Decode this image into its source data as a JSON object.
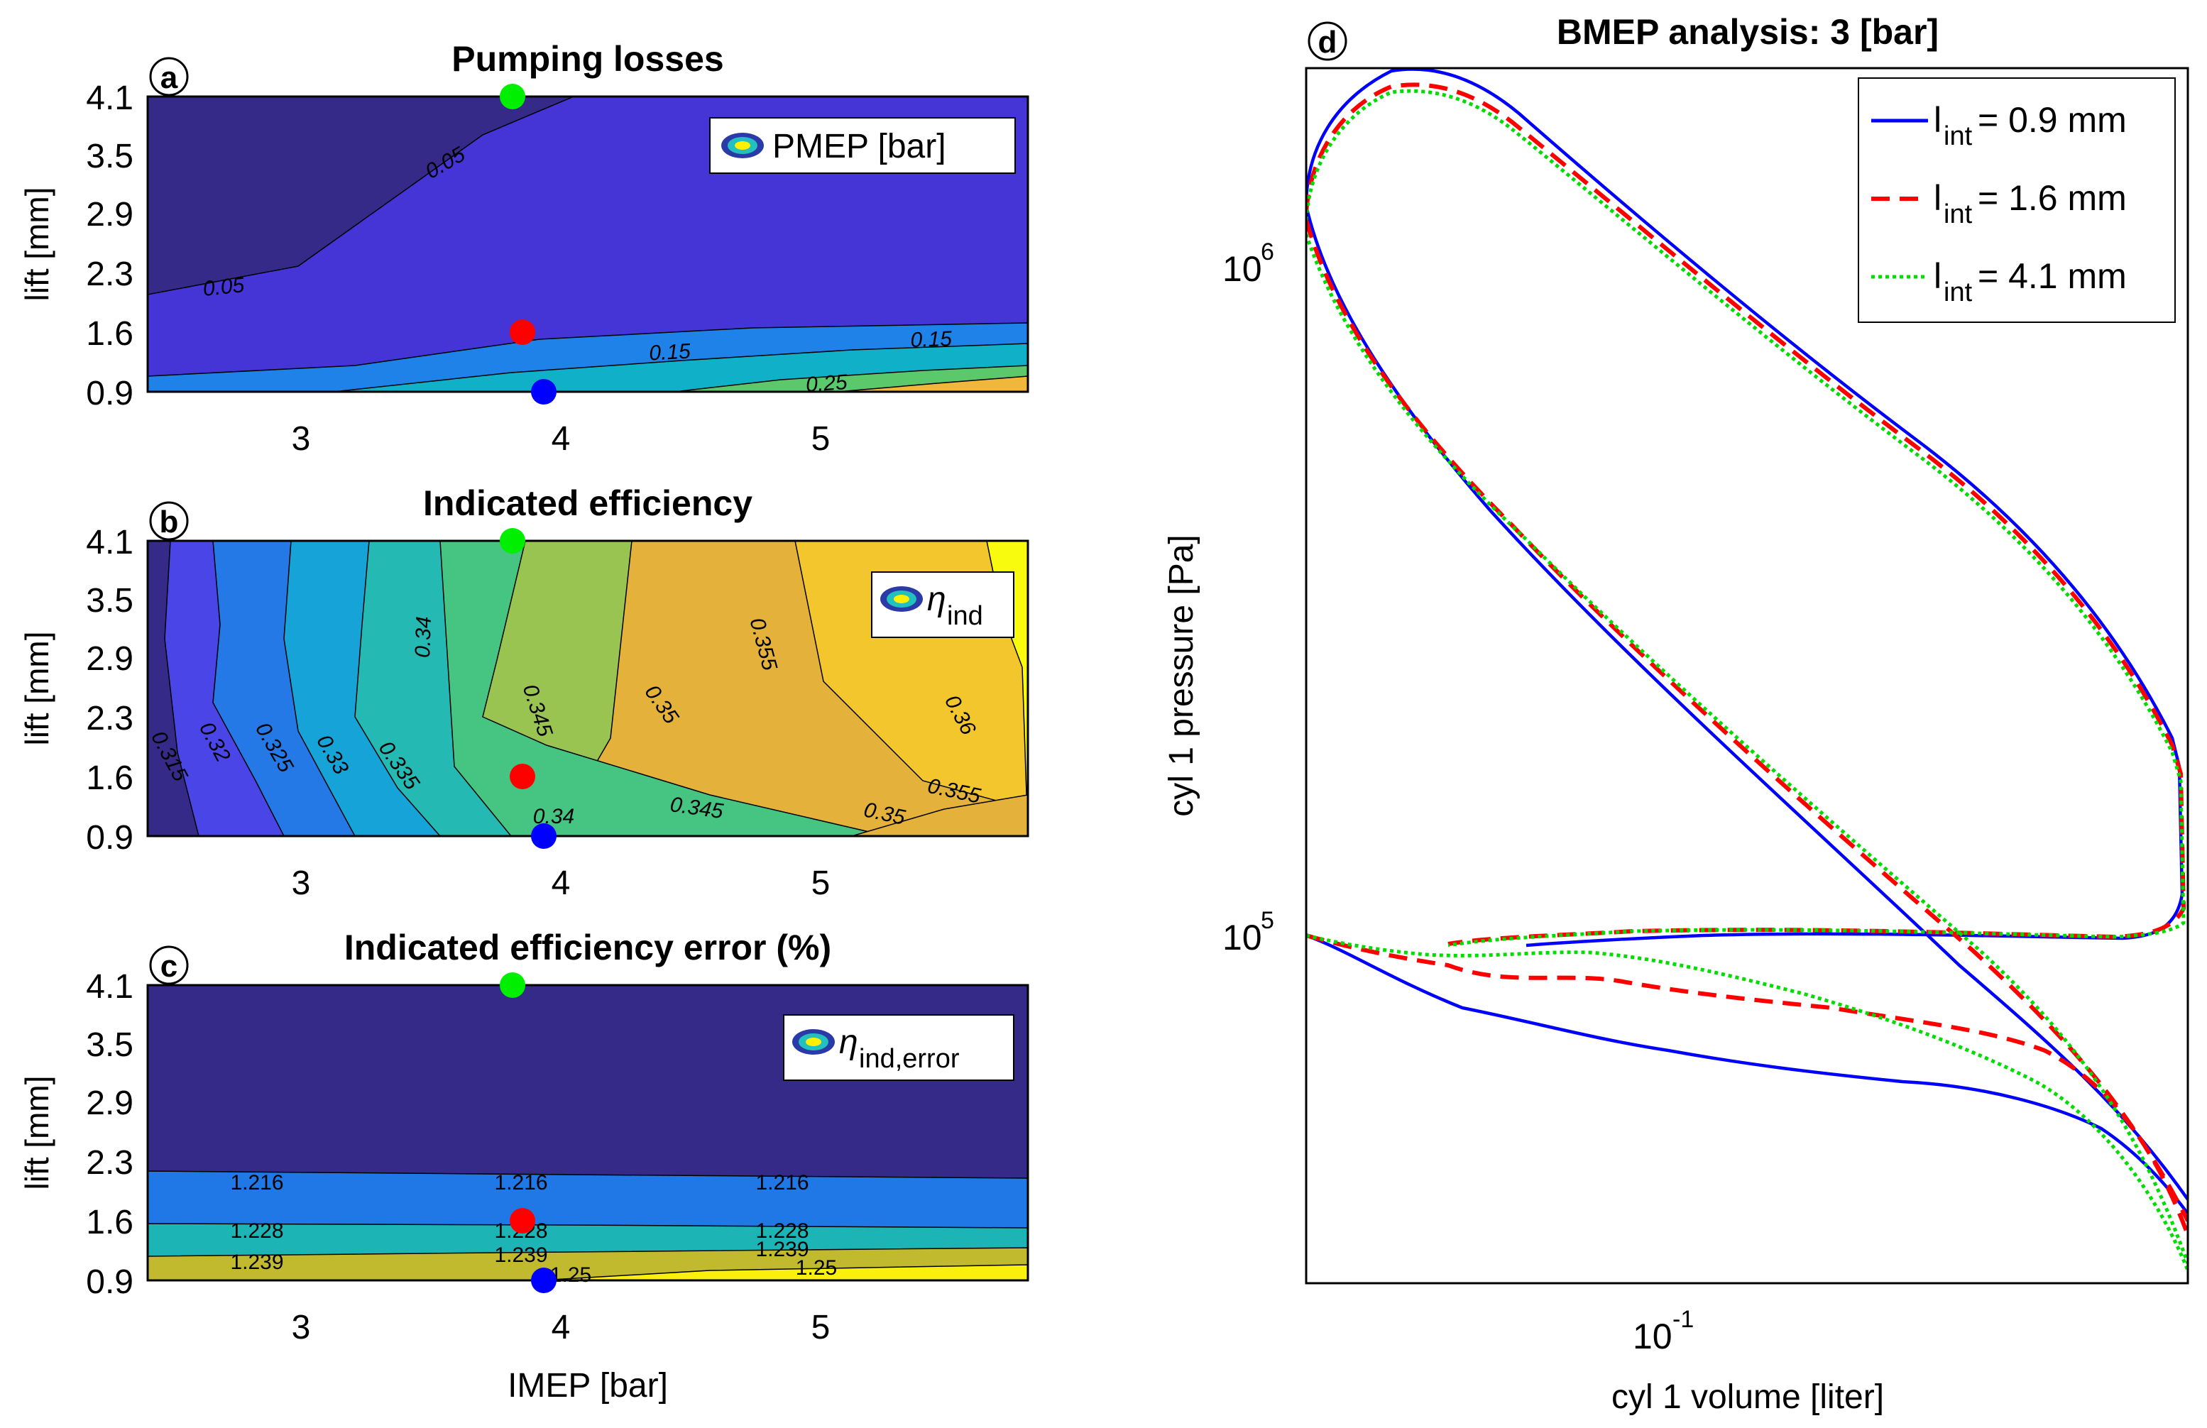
{
  "chart_data": [
    {
      "id": "a",
      "type": "contour",
      "panel_label": "a",
      "title": "Pumping losses",
      "xlabel": "",
      "ylabel": "lift [mm]",
      "xlim": [
        2.4,
        5.8
      ],
      "yticks": [
        "0.9",
        "1.6",
        "2.3",
        "2.9",
        "3.5",
        "4.1"
      ],
      "xticks": [
        "3",
        "4",
        "5"
      ],
      "legend": "PMEP [bar]",
      "contour_labels": [
        "0.05",
        "0.05",
        "0.15",
        "0.15",
        "0.25"
      ],
      "fill_colors": [
        "#352A87",
        "#4534D6",
        "#1F82E8",
        "#10B0C9",
        "#5BC86C",
        "#F1B73A"
      ],
      "markers": [
        {
          "color": "green",
          "imep": 3.8,
          "lift": "4.1"
        },
        {
          "color": "red",
          "imep": 3.85,
          "lift": "1.6"
        },
        {
          "color": "blue",
          "imep": 3.95,
          "lift": "0.9"
        }
      ]
    },
    {
      "id": "b",
      "type": "contour",
      "panel_label": "b",
      "title": "Indicated efficiency",
      "xlabel": "",
      "ylabel": "lift [mm]",
      "xlim": [
        2.4,
        5.8
      ],
      "yticks": [
        "0.9",
        "1.6",
        "2.3",
        "2.9",
        "3.5",
        "4.1"
      ],
      "xticks": [
        "3",
        "4",
        "5"
      ],
      "legend_symbol": "η",
      "legend_sub": "ind",
      "contour_labels": [
        "0.315",
        "0.32",
        "0.325",
        "0.33",
        "0.335",
        "0.34",
        "0.345",
        "0.34",
        "0.345",
        "0.35",
        "0.35",
        "0.355",
        "0.355",
        "0.36"
      ],
      "fill_colors": [
        "#352A87",
        "#4A45E6",
        "#2479E6",
        "#16A3D8",
        "#24B9B3",
        "#46C482",
        "#99C452",
        "#E4B13A",
        "#F4C62E",
        "#FBE52A",
        "#F9FB0E"
      ],
      "markers": [
        {
          "color": "green",
          "imep": 3.8,
          "lift": "4.1"
        },
        {
          "color": "red",
          "imep": 3.85,
          "lift": "1.6"
        },
        {
          "color": "blue",
          "imep": 3.95,
          "lift": "0.9"
        }
      ]
    },
    {
      "id": "c",
      "type": "contour",
      "panel_label": "c",
      "title": "Indicated efficiency error (%)",
      "xlabel": "IMEP [bar]",
      "ylabel": "lift [mm]",
      "xlim": [
        2.4,
        5.8
      ],
      "yticks": [
        "0.9",
        "1.6",
        "2.3",
        "2.9",
        "3.5",
        "4.1"
      ],
      "xticks": [
        "3",
        "4",
        "5"
      ],
      "legend_symbol": "η",
      "legend_sub": "ind,error",
      "contour_labels": [
        "1.216",
        "1.216",
        "1.216",
        "1.228",
        "1.228",
        "1.228",
        "1.239",
        "1.239",
        "1.239",
        "1.25",
        "1.25"
      ],
      "fill_colors": [
        "#352A87",
        "#2078E6",
        "#1CB4B4",
        "#C2BA2E",
        "#F9F00E"
      ],
      "markers": [
        {
          "color": "green",
          "imep": 3.8,
          "lift": "4.1"
        },
        {
          "color": "red",
          "imep": 3.85,
          "lift": "1.6"
        },
        {
          "color": "blue",
          "imep": 3.95,
          "lift": "0.9"
        }
      ]
    },
    {
      "id": "d",
      "type": "line",
      "panel_label": "d",
      "title": "BMEP analysis: 3 [bar]",
      "xlabel": "cyl 1 volume [liter]",
      "ylabel": "cyl 1 pressure [Pa]",
      "xscale": "log",
      "yscale": "log",
      "xlim": [
        0.033,
        0.55
      ],
      "ylim": [
        30000,
        2200000
      ],
      "xtick_base": "10",
      "xtick_exp": "-1",
      "ytick_base": "10",
      "ytick_exp_hi": "6",
      "ytick_exp_lo": "5",
      "legend_position": "top-right",
      "series": [
        {
          "name": "l",
          "sub": "int",
          "label": "= 0.9 mm",
          "color": "#0000FF",
          "style": "solid"
        },
        {
          "name": "l",
          "sub": "int",
          "label": "= 1.6 mm",
          "color": "#FF0000",
          "style": "dashed"
        },
        {
          "name": "l",
          "sub": "int",
          "label": "= 4.1 mm",
          "color": "#00DD00",
          "style": "dotted"
        }
      ]
    }
  ]
}
